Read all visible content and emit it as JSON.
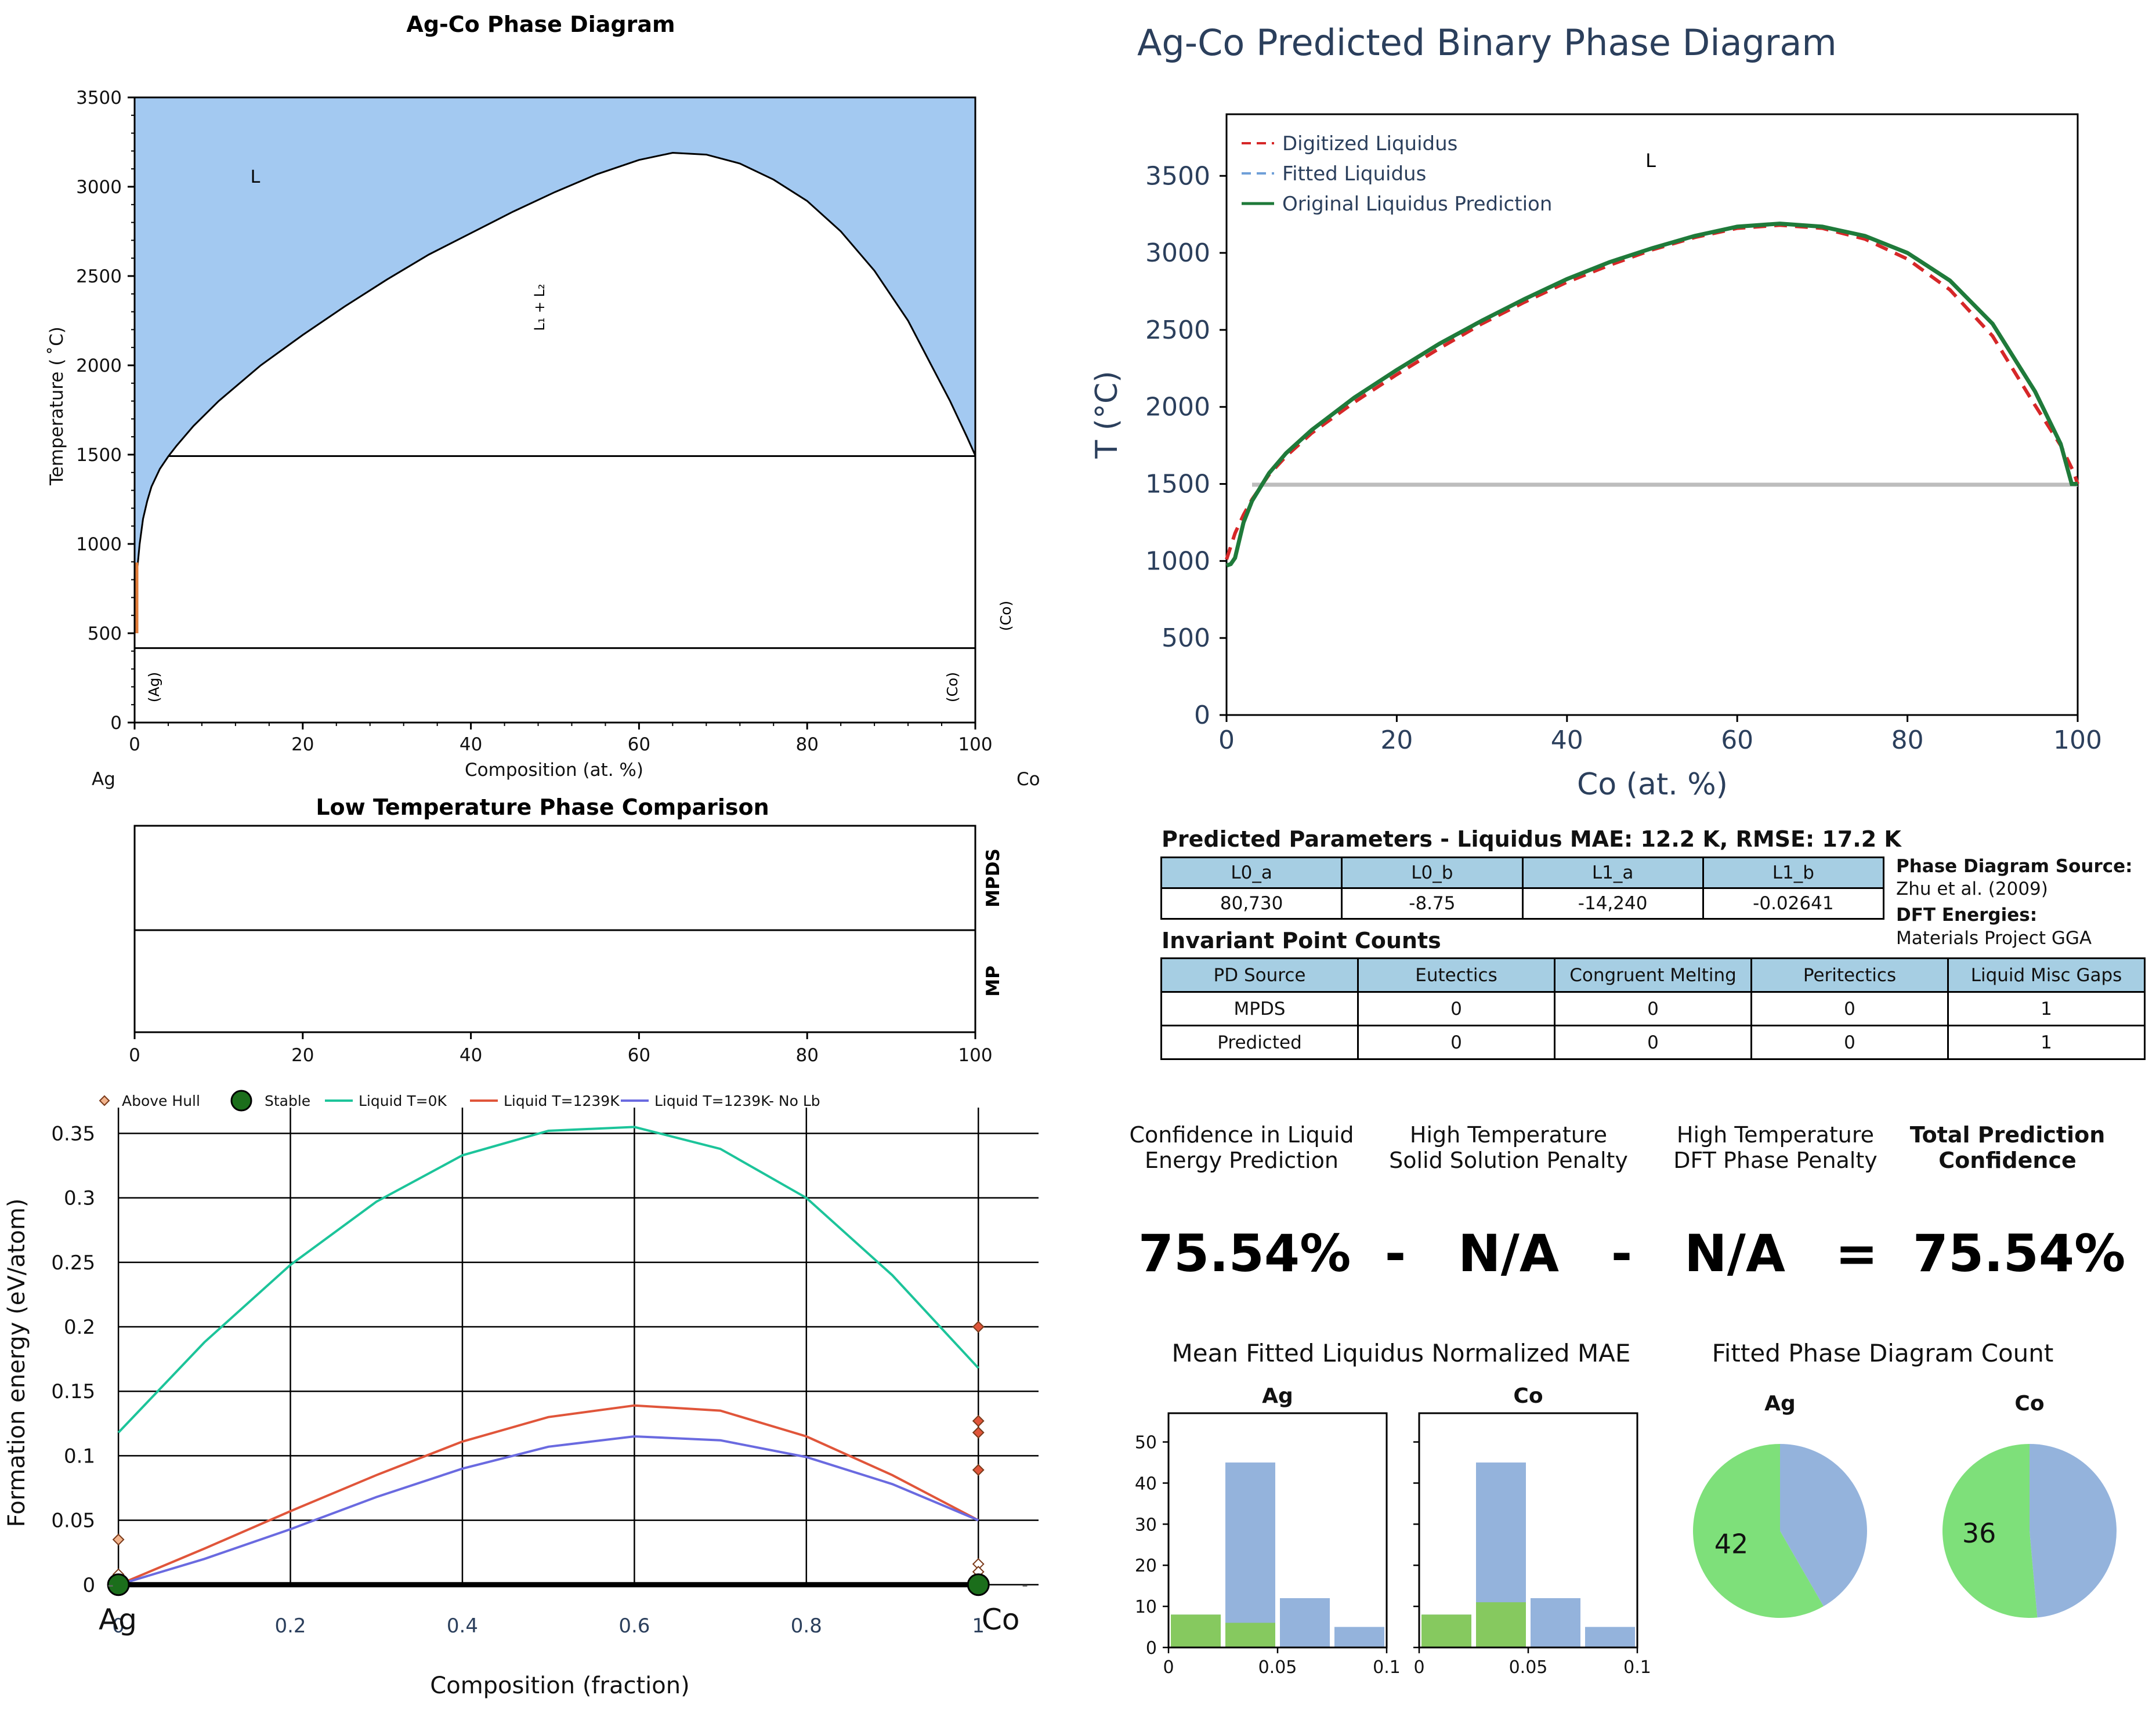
{
  "colors": {
    "liquid_fill": "#a3c9f1",
    "digitized": "#d62728",
    "fitted": "#6f9fd8",
    "original": "#1f7a3a",
    "navy": "#2b3f5c",
    "teal": "#1cc49a",
    "red_liq": "#e0553a",
    "blue_liq": "#6a6ae0",
    "hist_blue": "#94b3dc",
    "hist_green": "#86c95f",
    "pie_blue": "#94b3dc",
    "pie_green": "#7ee07a",
    "header_blue": "#a6cee3"
  },
  "chart_data": [
    {
      "id": "phase-diagram",
      "type": "area",
      "title": "Ag-Co Phase Diagram",
      "xlabel": "Composition (at. %)",
      "ylabel": "Temperature ( ˚C)",
      "left_element": "Ag",
      "right_element": "Co",
      "xlim": [
        0,
        100
      ],
      "ylim": [
        0,
        3500
      ],
      "xticks": [
        "0",
        "20",
        "40",
        "60",
        "80",
        "100"
      ],
      "yticks": [
        "0",
        "500",
        "1000",
        "1500",
        "2000",
        "2500",
        "3000",
        "3500"
      ],
      "regions": {
        "liquid": "L",
        "miscibility_gap": "L₁ + L₂",
        "ag_solid": "(Ag)",
        "co_solid": "(Co)",
        "co_solid_2": "(Co)"
      },
      "liquidus": {
        "x": [
          0,
          0.3,
          0.6,
          1,
          1.5,
          2,
          3,
          4,
          5,
          7,
          10,
          15,
          20,
          25,
          30,
          35,
          40,
          45,
          50,
          55,
          60,
          64,
          68,
          72,
          76,
          80,
          84,
          88,
          92,
          95,
          97,
          99,
          100
        ],
        "y": [
          540,
          850,
          1000,
          1140,
          1240,
          1320,
          1420,
          1490,
          1550,
          1660,
          1800,
          2000,
          2170,
          2330,
          2480,
          2620,
          2740,
          2860,
          2970,
          3070,
          3150,
          3190,
          3180,
          3130,
          3040,
          2920,
          2750,
          2530,
          2250,
          1980,
          1800,
          1600,
          1495
        ]
      },
      "monotectic_T": 1492,
      "eutectoid_T": 417
    },
    {
      "id": "predicted-diagram",
      "type": "line",
      "title": "Ag-Co Predicted Binary Phase Diagram",
      "xlabel": "Co (at. %)",
      "ylabel": "T (°C)",
      "xlim": [
        0,
        100
      ],
      "ylim": [
        0,
        3900
      ],
      "xticks": [
        "0",
        "20",
        "40",
        "60",
        "80",
        "100"
      ],
      "yticks": [
        "0",
        "500",
        "1000",
        "1500",
        "2000",
        "2500",
        "3000",
        "3500"
      ],
      "region_label": "L",
      "legend": "top-left",
      "series": [
        {
          "name": "Digitized Liquidus",
          "x": [
            0,
            1,
            2,
            3,
            5,
            7,
            10,
            15,
            20,
            25,
            30,
            35,
            40,
            45,
            50,
            55,
            60,
            65,
            70,
            75,
            80,
            85,
            90,
            95,
            98,
            99.5,
            100
          ],
          "y": [
            1010,
            1180,
            1300,
            1400,
            1560,
            1680,
            1830,
            2030,
            2210,
            2380,
            2540,
            2680,
            2810,
            2920,
            3020,
            3100,
            3160,
            3180,
            3160,
            3090,
            2960,
            2760,
            2460,
            2010,
            1750,
            1580,
            1500
          ]
        },
        {
          "name": "Fitted Liquidus",
          "x": [
            0,
            0.5,
            1,
            2,
            3,
            5,
            7,
            10,
            15,
            20,
            25,
            30,
            35,
            40,
            45,
            50,
            55,
            60,
            65,
            70,
            75,
            80,
            85,
            90,
            95,
            98,
            99.3,
            100
          ],
          "y": [
            970,
            980,
            1020,
            1250,
            1390,
            1570,
            1700,
            1850,
            2060,
            2240,
            2410,
            2560,
            2700,
            2830,
            2940,
            3030,
            3110,
            3170,
            3190,
            3170,
            3110,
            3000,
            2820,
            2540,
            2100,
            1760,
            1500,
            1500
          ]
        },
        {
          "name": "Original Liquidus Prediction",
          "x": [
            0,
            0.5,
            1,
            2,
            3,
            5,
            7,
            10,
            15,
            20,
            25,
            30,
            35,
            40,
            45,
            50,
            55,
            60,
            65,
            70,
            75,
            80,
            85,
            90,
            95,
            98,
            99.3,
            100
          ],
          "y": [
            970,
            980,
            1020,
            1250,
            1390,
            1570,
            1700,
            1850,
            2060,
            2240,
            2410,
            2560,
            2700,
            2830,
            2940,
            3030,
            3110,
            3170,
            3190,
            3170,
            3110,
            3000,
            2820,
            2540,
            2100,
            1760,
            1500,
            1500
          ]
        }
      ],
      "invariant_line": {
        "x": [
          3,
          100
        ],
        "y": 1495
      }
    },
    {
      "id": "low-temp-comparison",
      "type": "table",
      "title": "Low Temperature Phase Comparison",
      "rows": [
        "MPDS",
        "MP"
      ],
      "xlim": [
        0,
        100
      ],
      "xticks": [
        "0",
        "20",
        "40",
        "60",
        "80",
        "100"
      ]
    },
    {
      "id": "formation-energy",
      "type": "line",
      "xlabel": "Composition (fraction)",
      "ylabel": "Formation energy (eV/atom)",
      "left_element": "Ag",
      "right_element": "Co",
      "xlim": [
        -0.05,
        1.07
      ],
      "ylim": [
        -0.01,
        0.37
      ],
      "xticks": [
        "0",
        "0.2",
        "0.4",
        "0.6",
        "0.8",
        "1"
      ],
      "yticks": [
        "0",
        "0.05",
        "0.1",
        "0.15",
        "0.2",
        "0.25",
        "0.3",
        "0.35"
      ],
      "legend": "top",
      "series": [
        {
          "name": "Above Hull",
          "x": [
            0,
            0,
            1,
            1,
            1,
            1,
            1,
            1
          ],
          "y": [
            0.035,
            0.008,
            0.2,
            0.127,
            0.118,
            0.089,
            0.016,
            0.01
          ]
        },
        {
          "name": "Stable",
          "x": [
            0,
            1
          ],
          "y": [
            0,
            0
          ]
        },
        {
          "name": "Liquid T=0K",
          "x": [
            0,
            0.1,
            0.2,
            0.3,
            0.4,
            0.5,
            0.6,
            0.7,
            0.8,
            0.9,
            1.0
          ],
          "y": [
            0.118,
            0.188,
            0.248,
            0.297,
            0.333,
            0.352,
            0.355,
            0.338,
            0.3,
            0.24,
            0.168
          ]
        },
        {
          "name": "Liquid T=1239K",
          "x": [
            0,
            0.1,
            0.2,
            0.3,
            0.4,
            0.5,
            0.6,
            0.7,
            0.8,
            0.9,
            1.0
          ],
          "y": [
            0,
            0.028,
            0.057,
            0.085,
            0.111,
            0.13,
            0.139,
            0.135,
            0.115,
            0.085,
            0.05
          ]
        },
        {
          "name": "Liquid T=1239K- No Lb",
          "x": [
            0,
            0.1,
            0.2,
            0.3,
            0.4,
            0.5,
            0.6,
            0.7,
            0.8,
            0.9,
            1.0
          ],
          "y": [
            0,
            0.02,
            0.043,
            0.068,
            0.09,
            0.107,
            0.115,
            0.112,
            0.099,
            0.078,
            0.05
          ]
        }
      ]
    },
    {
      "id": "mae-histograms",
      "type": "bar",
      "title": "Mean Fitted Liquidus Normalized MAE",
      "panels": [
        {
          "name": "Ag",
          "bins": [
            0,
            0.025,
            0.05,
            0.075,
            0.1
          ],
          "blue": [
            8,
            45,
            12,
            5
          ],
          "green": [
            8,
            6,
            0,
            0
          ]
        },
        {
          "name": "Co",
          "bins": [
            0,
            0.025,
            0.05,
            0.075,
            0.1
          ],
          "blue": [
            8,
            45,
            12,
            5
          ],
          "green": [
            8,
            11,
            0,
            0
          ]
        }
      ],
      "ylim": [
        0,
        57
      ],
      "yticks": [
        "0",
        "10",
        "20",
        "30",
        "40",
        "50"
      ],
      "xticks": [
        "0",
        "0.05",
        "0.1"
      ]
    },
    {
      "id": "phase-diagram-count",
      "type": "pie",
      "title": "Fitted Phase Diagram Count",
      "pies": [
        {
          "name": "Ag",
          "green": 42,
          "blue": 30,
          "label": "42"
        },
        {
          "name": "Co",
          "green": 36,
          "blue": 34,
          "label": "36"
        }
      ]
    }
  ],
  "params": {
    "title": "Predicted Parameters - Liquidus MAE: 12.2 K, RMSE: 17.2 K",
    "headers": [
      "L0_a",
      "L0_b",
      "L1_a",
      "L1_b"
    ],
    "values": [
      "80,730",
      "-8.75",
      "-14,240",
      "-0.02641"
    ]
  },
  "source": {
    "pd_label": "Phase Diagram Source:",
    "pd_value": "Zhu et al. (2009)",
    "dft_label": "DFT Energies:",
    "dft_value": "Materials Project GGA"
  },
  "invariants": {
    "title": "Invariant Point Counts",
    "headers": [
      "PD Source",
      "Eutectics",
      "Congruent Melting",
      "Peritectics",
      "Liquid Misc Gaps"
    ],
    "rows": [
      [
        "MPDS",
        "0",
        "0",
        "0",
        "1"
      ],
      [
        "Predicted",
        "0",
        "0",
        "0",
        "1"
      ]
    ]
  },
  "confidence": {
    "labels": [
      [
        "Confidence in Liquid",
        "Energy Prediction"
      ],
      [
        "High Temperature",
        "Solid Solution Penalty"
      ],
      [
        "High Temperature",
        "DFT Phase Penalty"
      ],
      [
        "Total Prediction",
        "Confidence"
      ]
    ],
    "values": [
      "75.54%",
      "-",
      "N/A",
      "-",
      "N/A",
      "=",
      "75.54%"
    ]
  }
}
